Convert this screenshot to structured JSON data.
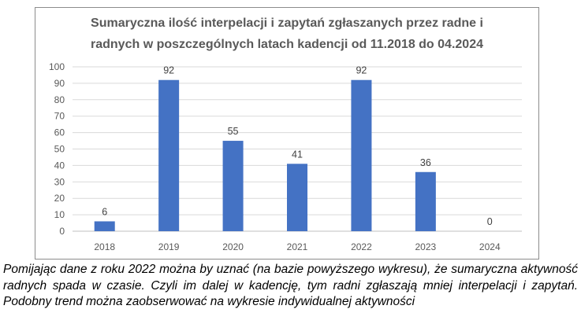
{
  "chart_data": {
    "type": "bar",
    "title_lines": [
      "Sumaryczna ilość interpelacji i zapytań zgłaszanych przez radne i",
      "radnych w poszczególnych latach kadencji  od 11.2018 do 04.2024"
    ],
    "categories": [
      "2018",
      "2019",
      "2020",
      "2021",
      "2022",
      "2023",
      "2024"
    ],
    "values": [
      6,
      92,
      55,
      41,
      92,
      36,
      0
    ],
    "xlabel": "",
    "ylabel": "",
    "ylim": [
      0,
      100
    ],
    "yticks": [
      0,
      10,
      20,
      30,
      40,
      50,
      60,
      70,
      80,
      90,
      100
    ],
    "grid": true,
    "legend": "none",
    "colors": {
      "bar": "#4472c4",
      "grid": "#d9d9d9",
      "text": "#595959",
      "axis": "#bfbfbf"
    }
  },
  "caption": "Pomijając dane z roku 2022 można by uznać (na bazie powyższego wykresu), że sumaryczna aktywność radnych spada w czasie. Czyli im dalej w kadencję, tym radni zgłaszają mniej interpelacji i zapytań. Podobny trend można zaobserwować na wykresie indywidualnej aktywności"
}
